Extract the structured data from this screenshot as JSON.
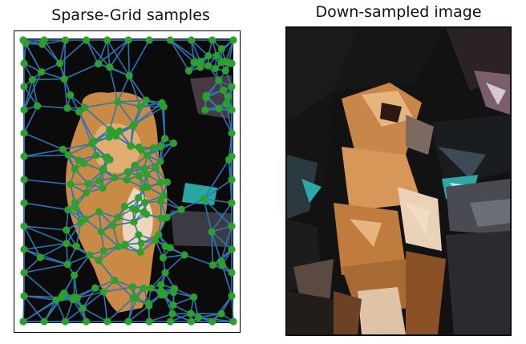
{
  "left_panel": {
    "title": "Sparse-Grid samples",
    "frame_color": "#000000",
    "edge_color": "#2f74b3",
    "point_color": "#2ca02c",
    "background_color": "#0b0b0b",
    "subject_color": "#c98a45"
  },
  "right_panel": {
    "title": "Down-sampled image",
    "frame_color": "#000000",
    "palette": {
      "dark": "#121212",
      "fur_light": "#e6b57d",
      "fur_mid": "#c9864a",
      "fur_dark": "#8a5127",
      "cream": "#f1dcc6",
      "teal": "#2ea8a4",
      "basket": "#4a4a52",
      "mauve": "#7a5f6b"
    }
  }
}
